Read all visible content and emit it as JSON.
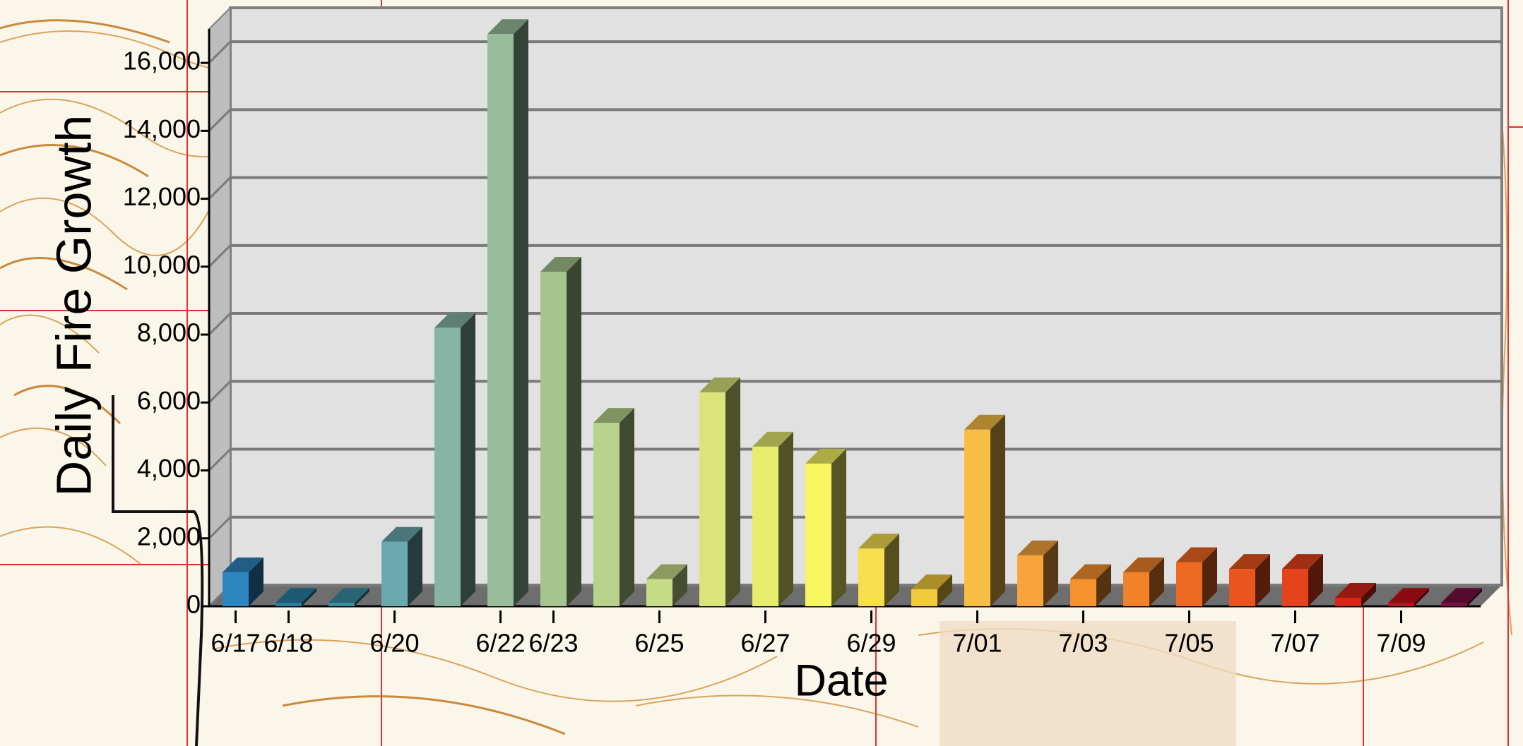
{
  "chart_data": {
    "type": "bar3d",
    "x_label": "Date",
    "y_label": "Daily Fire Growth",
    "categories": [
      "6/17",
      "6/18",
      null,
      "6/20",
      null,
      "6/22",
      "6/23",
      null,
      "6/25",
      null,
      "6/27",
      null,
      "6/29",
      null,
      "7/01",
      null,
      "7/03",
      null,
      "7/05",
      null,
      "7/07",
      null,
      "7/09",
      null
    ],
    "values": [
      1000,
      100,
      100,
      1900,
      8200,
      16850,
      9850,
      5400,
      800,
      6300,
      4700,
      4200,
      1700,
      500,
      5200,
      1500,
      800,
      1000,
      1300,
      1100,
      1100,
      250,
      100,
      100
    ],
    "colors": [
      "#2e86c1",
      "#2a7fa0",
      "#3a8fa5",
      "#6aa9b0",
      "#86b5a4",
      "#97bd9b",
      "#a5c48e",
      "#b7d28b",
      "#c8dc88",
      "#d9e47a",
      "#e6ec6c",
      "#f7f560",
      "#f6de4f",
      "#f2cb3d",
      "#f7bd45",
      "#f8a43c",
      "#f5922e",
      "#f2822a",
      "#ee6a22",
      "#e9551e",
      "#e4431c",
      "#d8251a",
      "#c8101a",
      "#7a1040"
    ],
    "ylim": [
      0,
      17000
    ],
    "yticks": [
      0,
      {
        "value": 2000,
        "label": "2,000"
      },
      {
        "value": 4000,
        "label": "4,000"
      },
      {
        "value": 6000,
        "label": "6,000"
      },
      {
        "value": 8000,
        "label": "8,000"
      },
      {
        "value": 10000,
        "label": "10,000"
      },
      {
        "value": 12000,
        "label": "12,000"
      },
      {
        "value": 14000,
        "label": "14,000"
      },
      {
        "value": 16000,
        "label": "16,000"
      }
    ],
    "grid": true
  }
}
